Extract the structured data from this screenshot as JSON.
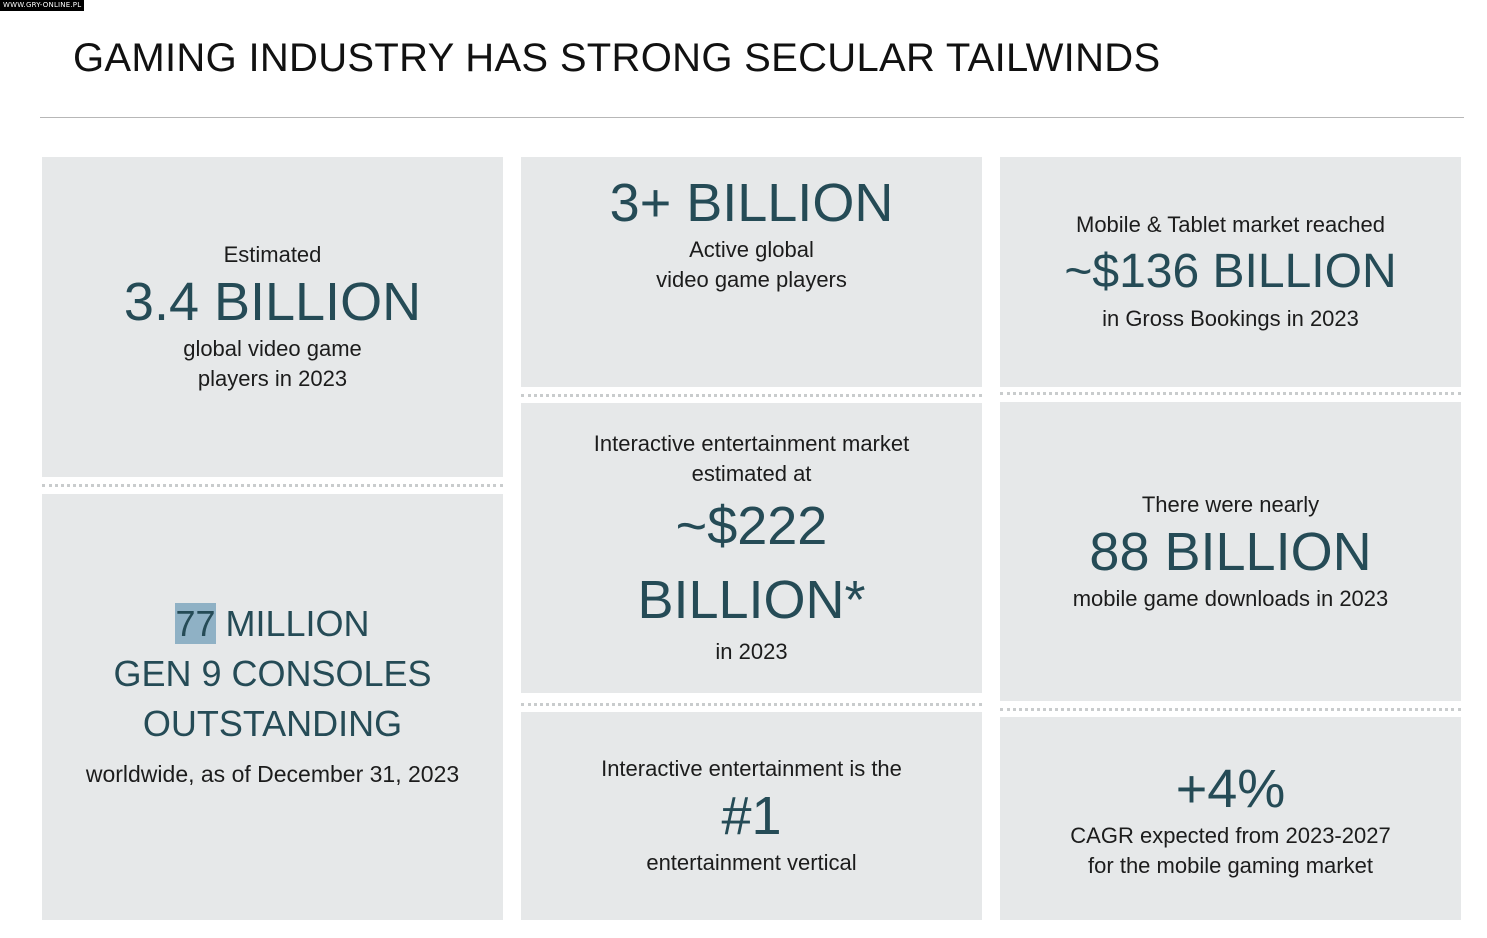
{
  "watermark": "WWW.GRY-ONLINE.PL",
  "title": "GAMING INDUSTRY HAS STRONG SECULAR TAILWINDS",
  "cards": {
    "players_2023": {
      "pre": "Estimated",
      "value": "3.4 BILLION",
      "post1": "global video game",
      "post2": "players in 2023"
    },
    "consoles": {
      "num": "77",
      "line1_rest": " MILLION",
      "line2": "GEN 9 CONSOLES",
      "line3": "OUTSTANDING",
      "post": "worldwide, as of December 31, 2023"
    },
    "active_players": {
      "value": "3+ BILLION",
      "post1": "Active global",
      "post2": "video game players"
    },
    "interactive_market": {
      "pre1": "Interactive entertainment market",
      "pre2": "estimated at",
      "value1": "~$222",
      "value2": "BILLION*",
      "post": "in 2023"
    },
    "vertical": {
      "pre": "Interactive entertainment is the",
      "value": "#1",
      "post": "entertainment vertical"
    },
    "mobile_tablet": {
      "pre": "Mobile & Tablet market reached",
      "value": "~$136 BILLION",
      "post": "in Gross Bookings in 2023"
    },
    "downloads": {
      "pre": "There were nearly",
      "value": "88 BILLION",
      "post": "mobile game downloads in 2023"
    },
    "cagr": {
      "value": "+4%",
      "post1": "CAGR expected from 2023-2027",
      "post2": "for the mobile gaming market"
    }
  }
}
